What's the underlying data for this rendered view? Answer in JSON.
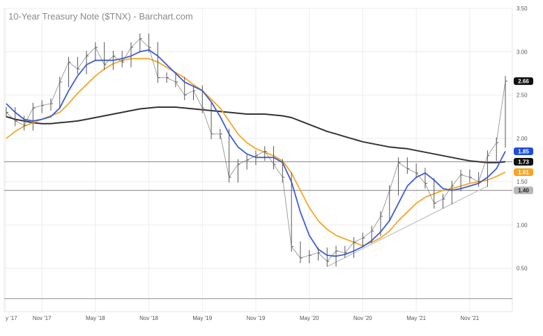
{
  "chart_data": {
    "type": "line",
    "title": "10-Year Treasury Note ($TNX) - Barchart.com",
    "xlabel": "",
    "ylabel": "",
    "ylim": [
      0.0,
      3.5
    ],
    "x_tick_labels": [
      "y '17",
      "Nov '17",
      "May '18",
      "Nov '18",
      "May '19",
      "Nov '19",
      "May '20",
      "Nov '20",
      "May '21",
      "Nov '21"
    ],
    "y_tick_labels": [
      "0.50",
      "1.00",
      "1.50",
      "2.00",
      "2.50",
      "3.00",
      "3.50"
    ],
    "y_ticks": [
      0.5,
      1.0,
      1.5,
      2.0,
      2.5,
      3.0,
      3.5
    ],
    "grid": true,
    "legend": "none",
    "x": [
      "Jul '17",
      "Aug '17",
      "Sep '17",
      "Oct '17",
      "Nov '17",
      "Dec '17",
      "Jan '18",
      "Feb '18",
      "Mar '18",
      "Apr '18",
      "May '18",
      "Jun '18",
      "Jul '18",
      "Aug '18",
      "Sep '18",
      "Oct '18",
      "Nov '18",
      "Dec '18",
      "Jan '19",
      "Feb '19",
      "Mar '19",
      "Apr '19",
      "May '19",
      "Jun '19",
      "Jul '19",
      "Aug '19",
      "Sep '19",
      "Oct '19",
      "Nov '19",
      "Dec '19",
      "Jan '20",
      "Feb '20",
      "Mar '20",
      "Apr '20",
      "May '20",
      "Jun '20",
      "Jul '20",
      "Aug '20",
      "Sep '20",
      "Oct '20",
      "Nov '20",
      "Dec '20",
      "Jan '21",
      "Feb '21",
      "Mar '21",
      "Apr '21",
      "May '21",
      "Jun '21",
      "Jul '21",
      "Aug '21",
      "Sep '21",
      "Oct '21",
      "Nov '21",
      "Dec '21",
      "Jan '22",
      "Feb '22",
      "Mar '22"
    ],
    "series": [
      {
        "name": "",
        "role": "price",
        "color": "#333333",
        "values": [
          2.3,
          2.2,
          2.15,
          2.35,
          2.38,
          2.4,
          2.65,
          2.88,
          2.8,
          2.95,
          3.05,
          2.85,
          2.95,
          2.88,
          3.05,
          3.15,
          3.05,
          2.7,
          2.7,
          2.65,
          2.5,
          2.55,
          2.35,
          2.05,
          2.05,
          1.55,
          1.7,
          1.75,
          1.8,
          1.85,
          1.7,
          1.55,
          0.75,
          0.62,
          0.65,
          0.68,
          0.58,
          0.7,
          0.68,
          0.8,
          0.85,
          0.93,
          1.1,
          1.4,
          1.72,
          1.65,
          1.6,
          1.48,
          1.25,
          1.3,
          1.45,
          1.58,
          1.55,
          1.5,
          1.8,
          1.95,
          2.66
        ]
      },
      {
        "name": "",
        "role": "moving-average",
        "color": "#3b5bdb",
        "values": [
          2.4,
          2.3,
          2.22,
          2.2,
          2.22,
          2.25,
          2.35,
          2.55,
          2.72,
          2.85,
          2.9,
          2.9,
          2.9,
          2.92,
          2.95,
          3.0,
          3.02,
          2.95,
          2.85,
          2.75,
          2.65,
          2.6,
          2.55,
          2.42,
          2.25,
          2.05,
          1.9,
          1.82,
          1.78,
          1.78,
          1.78,
          1.72,
          1.5,
          1.15,
          0.88,
          0.72,
          0.65,
          0.64,
          0.66,
          0.7,
          0.75,
          0.82,
          0.92,
          1.05,
          1.25,
          1.45,
          1.55,
          1.6,
          1.52,
          1.42,
          1.4,
          1.42,
          1.45,
          1.48,
          1.55,
          1.65,
          1.85
        ]
      },
      {
        "name": "",
        "role": "moving-average",
        "color": "#f5a623",
        "values": [
          2.0,
          2.08,
          2.14,
          2.18,
          2.22,
          2.26,
          2.3,
          2.4,
          2.52,
          2.62,
          2.72,
          2.8,
          2.86,
          2.9,
          2.92,
          2.92,
          2.92,
          2.88,
          2.82,
          2.76,
          2.7,
          2.62,
          2.55,
          2.45,
          2.35,
          2.2,
          2.05,
          1.95,
          1.88,
          1.84,
          1.8,
          1.74,
          1.6,
          1.4,
          1.2,
          1.05,
          0.95,
          0.88,
          0.84,
          0.8,
          0.76,
          0.8,
          0.85,
          0.93,
          1.05,
          1.15,
          1.25,
          1.32,
          1.36,
          1.4,
          1.42,
          1.45,
          1.48,
          1.5,
          1.52,
          1.56,
          1.61
        ]
      },
      {
        "name": "",
        "role": "moving-average",
        "color": "#333333",
        "values": [
          2.25,
          2.22,
          2.2,
          2.18,
          2.17,
          2.17,
          2.18,
          2.19,
          2.2,
          2.22,
          2.24,
          2.26,
          2.28,
          2.3,
          2.32,
          2.34,
          2.35,
          2.36,
          2.36,
          2.36,
          2.35,
          2.34,
          2.33,
          2.32,
          2.31,
          2.3,
          2.29,
          2.28,
          2.28,
          2.28,
          2.27,
          2.26,
          2.24,
          2.2,
          2.16,
          2.12,
          2.08,
          2.05,
          2.02,
          1.99,
          1.96,
          1.94,
          1.92,
          1.9,
          1.89,
          1.88,
          1.86,
          1.84,
          1.82,
          1.8,
          1.78,
          1.76,
          1.74,
          1.73,
          1.72,
          1.72,
          1.73
        ]
      }
    ],
    "horizontal_lines": [
      1.73,
      1.4,
      0.15
    ],
    "trendline": {
      "x": [
        "Jul '20",
        "Jan '22"
      ],
      "values": [
        0.52,
        1.45
      ]
    },
    "price_badges": [
      {
        "label": "2.66",
        "value": 2.66,
        "background": "#111111",
        "text_color": "#ffffff"
      },
      {
        "label": "1.85",
        "value": 1.85,
        "background": "#1d4ed8",
        "text_color": "#ffffff"
      },
      {
        "label": "1.73",
        "value": 1.73,
        "background": "#111111",
        "text_color": "#ffffff"
      },
      {
        "label": "1.61",
        "value": 1.61,
        "background": "#f5a623",
        "text_color": "#ffffff"
      },
      {
        "label": "1.40",
        "value": 1.4,
        "background": "#b8b8b8",
        "text_color": "#222222"
      }
    ]
  }
}
